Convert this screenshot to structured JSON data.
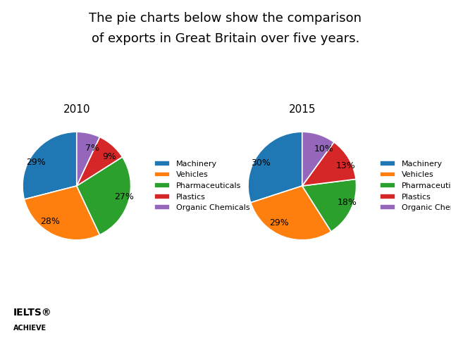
{
  "title": "The pie charts below show the comparison",
  "subtitle": "of exports in Great Britain over five years.",
  "annotations": [
    "IELTS®",
    "ACHIEVE"
  ],
  "chart_data": [
    {
      "type": "pie",
      "title": "2010",
      "categories": [
        "Machinery",
        "Vehicles",
        "Pharmaceuticals",
        "Plastics",
        "Organic Chemicals"
      ],
      "values": [
        29,
        28,
        27,
        9,
        7
      ],
      "value_labels": [
        "29%",
        "28%",
        "27%",
        "9%",
        "7%"
      ],
      "legend": "center left"
    },
    {
      "type": "pie",
      "title": "2015",
      "categories": [
        "Machinery",
        "Vehicles",
        "Pharmaceuticals",
        "Plastics",
        "Organic Chemicals"
      ],
      "values": [
        30,
        29,
        18,
        13,
        10
      ],
      "value_labels": [
        "30%",
        "29%",
        "18%",
        "13%",
        "10%"
      ],
      "legend": "center left"
    }
  ]
}
